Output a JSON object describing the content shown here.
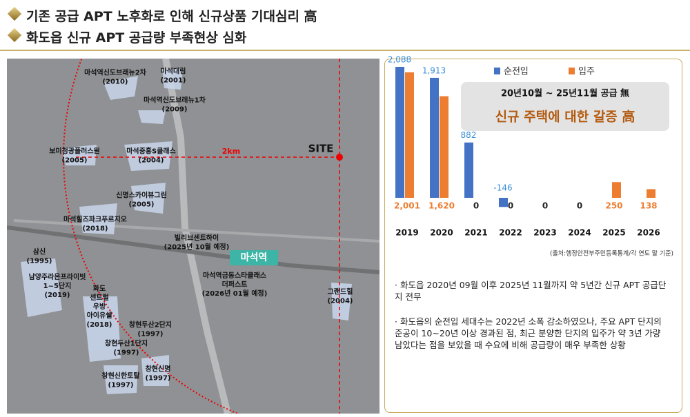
{
  "header": {
    "title1": "기존 공급 APT 노후화로 인해 신규상품 기대심리 高",
    "title2": "화도읍 신규 APT 공급량 부족현상 심화"
  },
  "map": {
    "site": "SITE",
    "distance": "2km",
    "station": "마석역",
    "labels": [
      [
        "마석역신도브래뉴2차",
        "(2010)"
      ],
      [
        "마석대림",
        "(2001)"
      ],
      [
        "마석역신도브래뉴1차",
        "(2009)"
      ],
      [
        "보미청광플러스원",
        "(2005)"
      ],
      [
        "마석중흥S클래스",
        "(2004)"
      ],
      [
        "신명스카이뷰그린",
        "(2005)"
      ],
      [
        "마석힐즈파크푸르지오",
        "(2018)"
      ],
      [
        "빌리브센트하이",
        "(2025년 10월 예정)"
      ],
      [
        "삼신",
        "(1995)"
      ],
      [
        "남양주라온프라이빗",
        "1~5단지",
        "(2019)"
      ],
      [
        "화도",
        "센트럴",
        "우방",
        "아이유쉘",
        "(2018)"
      ],
      [
        "마석역금동스타클래스",
        "더퍼스트",
        "(2026년 01월 예정)"
      ],
      [
        "그랜드힐",
        "(2004)"
      ],
      [
        "창현두산2단지",
        "(1997)"
      ],
      [
        "창현두산1단지",
        "(1997)"
      ],
      [
        "창현신한토탈",
        "(1997)"
      ],
      [
        "창현신명",
        "(1997)"
      ]
    ]
  },
  "chart_data": {
    "type": "bar",
    "title": "20년10월 ~ 25년11월 공급 無",
    "subtitle": "신규 주택에 대한 갈증 高",
    "source": "(출처:행정안전부주민등록통계/각 연도 말 기준)",
    "categories": [
      "2019",
      "2020",
      "2021",
      "2022",
      "2023",
      "2024",
      "2025",
      "2026"
    ],
    "series": [
      {
        "name": "순전입",
        "color": "#4472c4",
        "values": [
          2088,
          1913,
          882,
          -146,
          null,
          null,
          null,
          null
        ],
        "value_labels": [
          "2,088",
          "1,913",
          "882",
          "-146",
          null,
          null,
          null,
          null
        ]
      },
      {
        "name": "입주",
        "color": "#ed7d31",
        "values": [
          2001,
          1620,
          0,
          0,
          0,
          0,
          250,
          138
        ],
        "value_labels": [
          "2,001",
          "1,620",
          "0",
          "0",
          "0",
          "0",
          "250",
          "138"
        ]
      }
    ]
  },
  "notes": [
    "화도읍 2020년 09월 이후 2025년 11월까지 약 5년간 신규 APT 공급단지 전무",
    "화도읍의 순전입 세대수는 2022년 소폭 감소하였으나, 주요 APT 단지의 준공이 10~20년 이상 경과된 점, 최근 분양한 단지의 입주가 약 3년 가량 남았다는 점을 보았을 때 수요에 비해 공급량이 매우 부족한 상황"
  ]
}
